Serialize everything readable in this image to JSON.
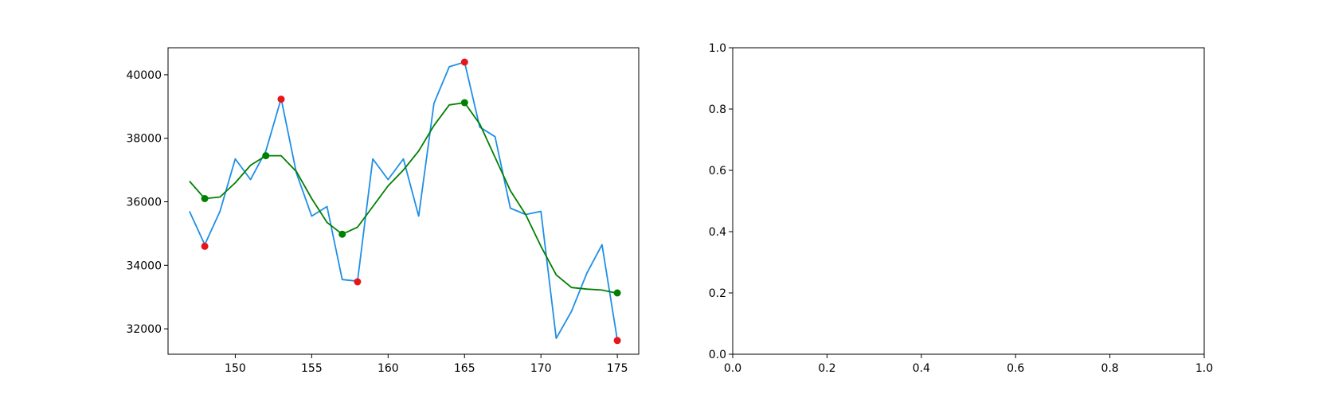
{
  "chart_data": [
    {
      "type": "line",
      "title": "",
      "xlabel": "",
      "ylabel": "",
      "xlim": [
        145.6,
        176.4
      ],
      "ylim": [
        31200,
        40850
      ],
      "xticks": [
        150,
        155,
        160,
        165,
        170,
        175
      ],
      "yticks": [
        32000,
        34000,
        36000,
        38000,
        40000
      ],
      "x_tick_labels": [
        "150",
        "155",
        "160",
        "165",
        "170",
        "175"
      ],
      "y_tick_labels": [
        "32000",
        "34000",
        "36000",
        "38000",
        "40000"
      ],
      "grid": false,
      "legend": "none",
      "series": [
        {
          "style": "line",
          "color": "#1f8fe6",
          "x": [
            147,
            148,
            149,
            150,
            151,
            152,
            153,
            154,
            155,
            156,
            157,
            158,
            159,
            160,
            161,
            162,
            163,
            164,
            165,
            166,
            167,
            168,
            169,
            170,
            171,
            172,
            173,
            174,
            175
          ],
          "values": [
            35700,
            34650,
            35700,
            37350,
            36700,
            37600,
            39250,
            36900,
            35550,
            35850,
            33550,
            33500,
            37350,
            36700,
            37350,
            35550,
            39100,
            40250,
            40400,
            38350,
            38050,
            35800,
            35600,
            35700,
            31700,
            32550,
            33750,
            34650,
            31650
          ]
        },
        {
          "style": "line",
          "color": "#008000",
          "x": [
            147,
            148,
            149,
            150,
            151,
            152,
            153,
            154,
            155,
            156,
            157,
            158,
            159,
            160,
            161,
            162,
            163,
            164,
            165,
            166,
            167,
            168,
            169,
            170,
            171,
            172,
            173,
            174,
            175
          ],
          "values": [
            36650,
            36100,
            36150,
            36600,
            37150,
            37450,
            37450,
            36950,
            36100,
            35350,
            34980,
            35200,
            35850,
            36500,
            37000,
            37600,
            38400,
            39050,
            39120,
            38450,
            37400,
            36350,
            35600,
            34600,
            33700,
            33300,
            33250,
            33220,
            33120
          ]
        },
        {
          "style": "scatter",
          "color": "#e8151b",
          "x": [
            148,
            153,
            158,
            165,
            175
          ],
          "values": [
            34600,
            39230,
            33480,
            40400,
            31630
          ]
        },
        {
          "style": "scatter",
          "color": "#008000",
          "x": [
            148,
            152,
            157,
            165,
            175
          ],
          "values": [
            36100,
            37450,
            34980,
            39120,
            33130
          ]
        }
      ]
    },
    {
      "type": "line",
      "title": "",
      "xlabel": "",
      "ylabel": "",
      "xlim": [
        0,
        1
      ],
      "ylim": [
        0,
        1
      ],
      "xticks": [
        0,
        0.2,
        0.4,
        0.6,
        0.8,
        1.0
      ],
      "yticks": [
        0,
        0.2,
        0.4,
        0.6,
        0.8,
        1.0
      ],
      "x_tick_labels": [
        "0.0",
        "0.2",
        "0.4",
        "0.6",
        "0.8",
        "1.0"
      ],
      "y_tick_labels": [
        "0.0",
        "0.2",
        "0.4",
        "0.6",
        "0.8",
        "1.0"
      ],
      "grid": false,
      "legend": "none",
      "series": []
    }
  ]
}
